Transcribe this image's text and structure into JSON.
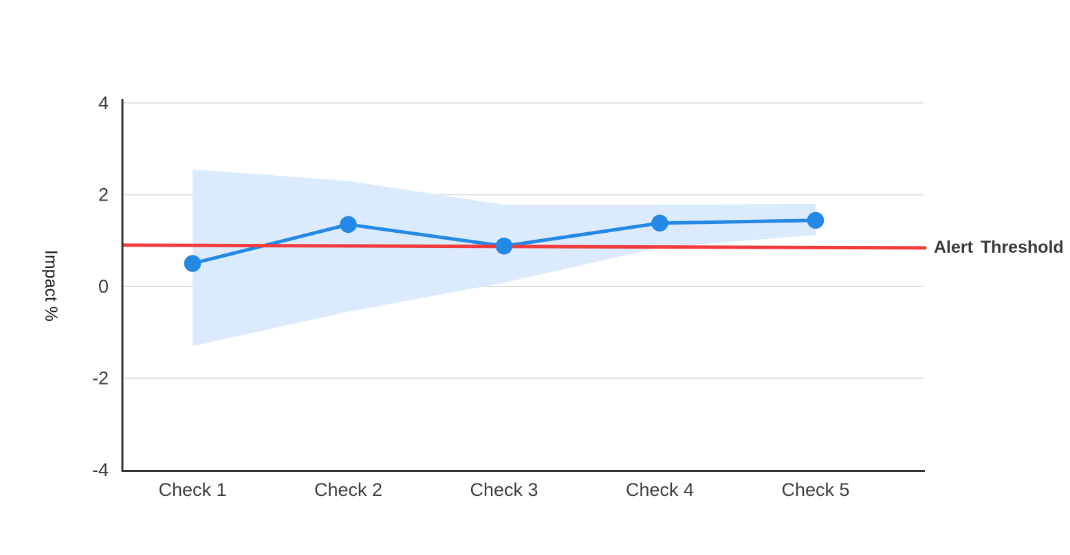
{
  "chart_data": {
    "type": "line",
    "title": "",
    "categories": [
      "Check 1",
      "Check 2",
      "Check 3",
      "Check 4",
      "Check 5"
    ],
    "series": [
      {
        "name": "impact",
        "values": [
          0.5,
          1.35,
          0.88,
          1.38,
          1.44
        ]
      }
    ],
    "confidence_band": {
      "upper": [
        2.55,
        2.3,
        1.78,
        1.78,
        1.8
      ],
      "lower": [
        -1.3,
        -0.55,
        0.08,
        0.85,
        1.12
      ],
      "color": "#dbeafc"
    },
    "threshold": {
      "label": "Alert Threshold",
      "start_value": 0.9,
      "end_value": 0.84,
      "color": "#f23b3c"
    },
    "xlabel": "",
    "ylabel": "Impact %",
    "ylim": [
      -4,
      4
    ],
    "yticks": [
      4,
      2,
      0,
      -2,
      -4
    ],
    "grid": true,
    "legend_position": "none",
    "line_color": "#2389e5",
    "marker": "circle"
  },
  "colors": {
    "background": "#ffffff",
    "gridline": "#dedede",
    "axis": "#333333",
    "tick_label": "#3d3d3d",
    "impact_line": "#2389e5",
    "band_fill": "#dbeafc",
    "threshold_line": "#f23b3c",
    "threshold_label": "#3a3a3a"
  }
}
